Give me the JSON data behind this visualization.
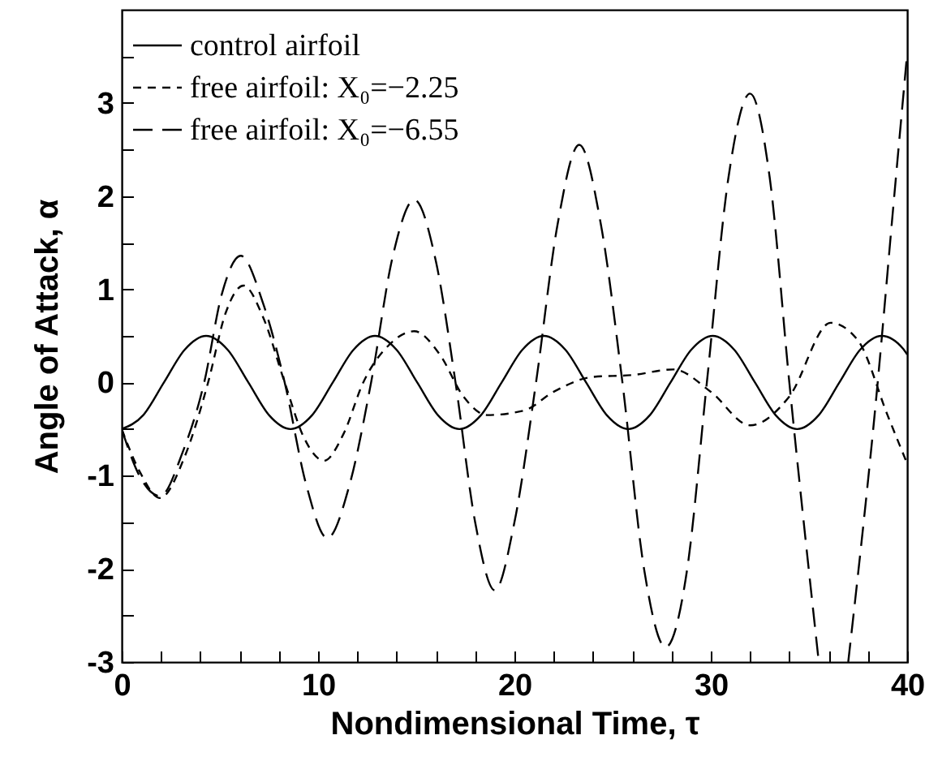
{
  "chart_data": {
    "type": "line",
    "xlabel": "Nondimensional Time, τ",
    "ylabel": "Angle of Attack, α",
    "xlim": [
      0,
      40
    ],
    "ylim": [
      -3,
      4
    ],
    "xticks": [
      0,
      {
        "value": 2,
        "label": null
      },
      {
        "value": 4,
        "label": null
      },
      {
        "value": 6,
        "label": null
      },
      {
        "value": 8,
        "label": null
      },
      10,
      {
        "value": 12,
        "label": null
      },
      {
        "value": 14,
        "label": null
      },
      {
        "value": 16,
        "label": null
      },
      {
        "value": 18,
        "label": null
      },
      20,
      {
        "value": 22,
        "label": null
      },
      {
        "value": 24,
        "label": null
      },
      {
        "value": 26,
        "label": null
      },
      {
        "value": 28,
        "label": null
      },
      30,
      {
        "value": 32,
        "label": null
      },
      {
        "value": 34,
        "label": null
      },
      {
        "value": 36,
        "label": null
      },
      {
        "value": 38,
        "label": null
      },
      40
    ],
    "yticks": [
      -3,
      {
        "value": -2.5,
        "label": null
      },
      -2,
      {
        "value": -1.5,
        "label": null
      },
      -1,
      {
        "value": -0.5,
        "label": null
      },
      0,
      {
        "value": 0.5,
        "label": null
      },
      1,
      {
        "value": 1.5,
        "label": null
      },
      2,
      {
        "value": 2.5,
        "label": null
      },
      3,
      {
        "value": 3.5,
        "label": null
      }
    ],
    "grid": false,
    "legend": "top left",
    "marker": "none",
    "series": [
      {
        "name": "control airfoil",
        "color": "#000000",
        "line_style": "solid",
        "x": [
          0,
          1.1,
          2.15,
          3.2,
          4.3,
          5.4,
          6.45,
          7.5,
          8.6,
          9.7,
          10.75,
          11.8,
          12.9,
          14,
          15.05,
          16.1,
          17.2,
          18.3,
          19.35,
          20.4,
          21.5,
          22.6,
          23.65,
          24.7,
          25.8,
          26.9,
          27.95,
          29,
          30.1,
          31.2,
          32.25,
          33.3,
          34.4,
          35.5,
          36.55,
          37.6,
          38.7,
          39.8,
          40
        ],
        "values": [
          -0.5,
          -0.35,
          0,
          0.35,
          0.5,
          0.35,
          0,
          -0.35,
          -0.5,
          -0.35,
          0,
          0.35,
          0.5,
          0.35,
          0,
          -0.35,
          -0.5,
          -0.35,
          0,
          0.35,
          0.5,
          0.35,
          0,
          -0.35,
          -0.5,
          -0.35,
          0,
          0.35,
          0.5,
          0.35,
          0,
          -0.35,
          -0.5,
          -0.35,
          0,
          0.35,
          0.5,
          0.36,
          0.3
        ]
      },
      {
        "name": "free airfoil: X₀=−2.25",
        "color": "#000000",
        "line_style": "dashed",
        "x": [
          0,
          0.9,
          1.95,
          3.2,
          4.4,
          5.3,
          6.2,
          7.2,
          8.3,
          9.3,
          10.3,
          11.3,
          12.3,
          13.6,
          14.9,
          16.2,
          17.4,
          18.6,
          20.5,
          22,
          24,
          26,
          28.1,
          30,
          32,
          34,
          36.1,
          37.5,
          39,
          40
        ],
        "values": [
          -0.5,
          -0.95,
          -1.24,
          -0.8,
          0,
          0.75,
          1.04,
          0.7,
          0,
          -0.6,
          -0.84,
          -0.55,
          0,
          0.4,
          0.55,
          0.3,
          -0.15,
          -0.35,
          -0.3,
          -0.1,
          0.06,
          0.08,
          0.14,
          -0.1,
          -0.46,
          -0.15,
          0.64,
          0.45,
          -0.35,
          -0.87
        ]
      },
      {
        "name": "free airfoil: X₀=−6.55",
        "color": "#000000",
        "line_style": "dashed",
        "x": [
          0,
          0.9,
          1.95,
          3.1,
          4.2,
          5.1,
          6.06,
          7.2,
          8.3,
          9.4,
          10.47,
          11.6,
          12.7,
          13.8,
          14.9,
          16,
          17,
          18,
          19,
          20,
          21.1,
          22.2,
          23.3,
          24.4,
          25.5,
          26.6,
          27.7,
          28.8,
          29.8,
          30.9,
          32,
          33,
          34,
          35.5,
          36.2,
          37,
          38.5,
          39.3,
          40
        ],
        "values": [
          -0.5,
          -1,
          -1.22,
          -0.75,
          0,
          0.95,
          1.36,
          0.85,
          0,
          -1.1,
          -1.67,
          -1.1,
          0,
          1.35,
          1.96,
          1.3,
          0,
          -1.5,
          -2.23,
          -1.5,
          0,
          1.7,
          2.55,
          1.7,
          0,
          -2.0,
          -2.84,
          -2,
          0,
          2.2,
          3.1,
          2.2,
          0,
          -3,
          null,
          -3,
          0,
          1.9,
          3.53
        ]
      }
    ]
  }
}
